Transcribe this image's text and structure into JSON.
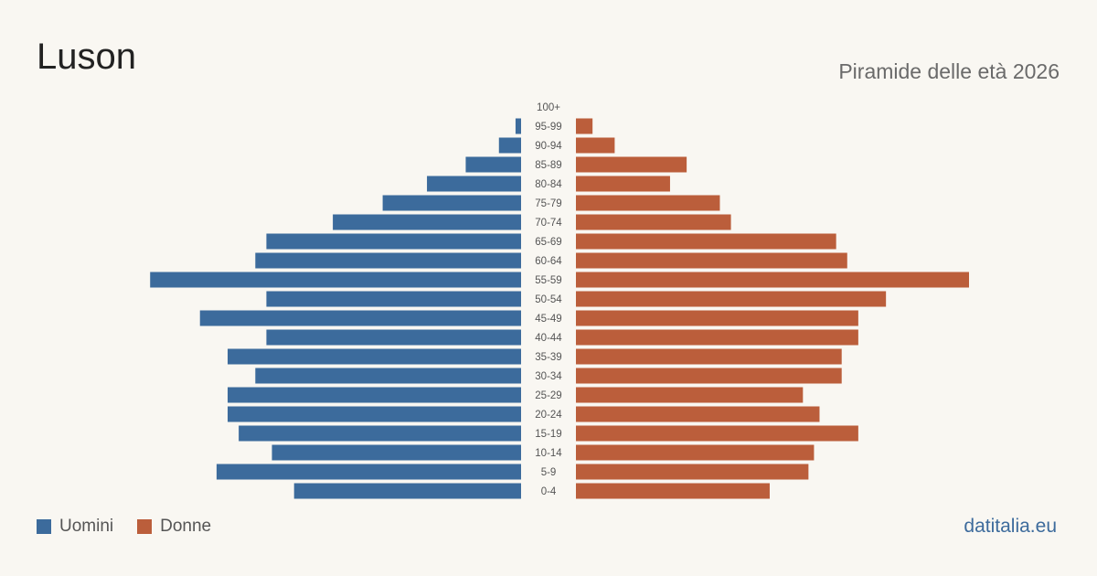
{
  "header": {
    "title": "Luson",
    "subtitle": "Piramide delle età 2026"
  },
  "legend": {
    "men_label": "Uomini",
    "women_label": "Donne"
  },
  "footer": {
    "brand": "datitalia.eu"
  },
  "colors": {
    "men": "#3c6b9c",
    "women": "#bb5e3b",
    "background": "#f9f7f2",
    "tick_text": "#555555"
  },
  "chart_data": {
    "type": "bar",
    "orientation": "horizontal-pyramid",
    "title": "Luson",
    "subtitle": "Piramide delle età 2026",
    "categories": [
      "100+",
      "95-99",
      "90-94",
      "85-89",
      "80-84",
      "75-79",
      "70-74",
      "65-69",
      "60-64",
      "55-59",
      "50-54",
      "45-49",
      "40-44",
      "35-39",
      "30-34",
      "25-29",
      "20-24",
      "15-19",
      "10-14",
      "5-9",
      "0-4"
    ],
    "series": [
      {
        "name": "Uomini",
        "side": "left",
        "values": [
          0,
          1,
          4,
          10,
          17,
          25,
          34,
          46,
          48,
          67,
          46,
          58,
          46,
          53,
          48,
          53,
          53,
          51,
          45,
          55,
          41
        ]
      },
      {
        "name": "Donne",
        "side": "right",
        "values": [
          0,
          3,
          7,
          20,
          17,
          26,
          28,
          47,
          49,
          71,
          56,
          51,
          51,
          48,
          48,
          41,
          44,
          51,
          43,
          42,
          35
        ]
      }
    ],
    "max_value": 71,
    "legend_position": "bottom-left",
    "grid": false
  }
}
